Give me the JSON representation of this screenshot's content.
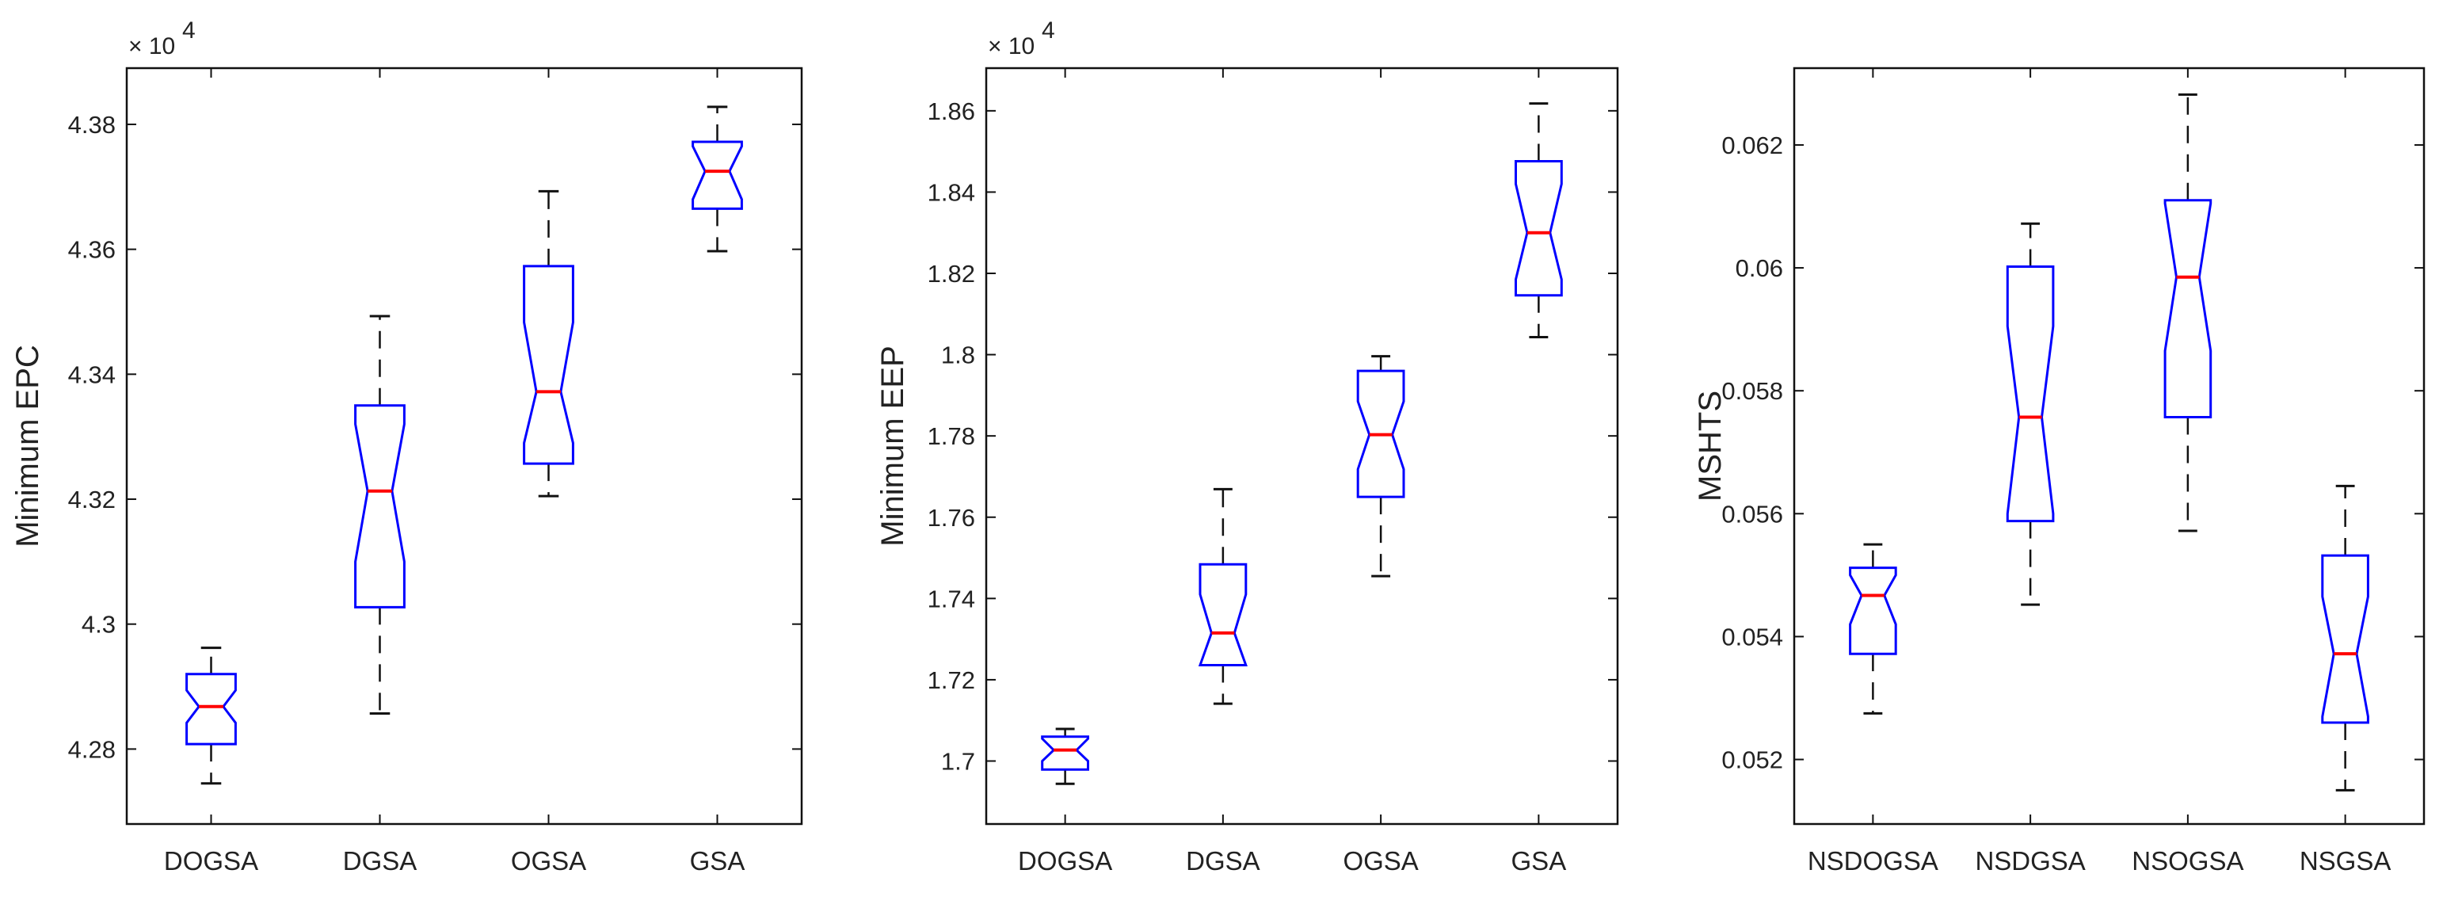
{
  "chart_data": [
    {
      "type": "boxplot",
      "notched": true,
      "ylabel": "Minimum EPC",
      "exponent_label": "× 10",
      "exponent_power": "4",
      "ylim": [
        4.268,
        4.389
      ],
      "yticks": [
        4.28,
        4.3,
        4.32,
        4.34,
        4.36,
        4.38
      ],
      "ytick_labels": [
        "4.28",
        "4.3",
        "4.32",
        "4.34",
        "4.36",
        "4.38"
      ],
      "categories": [
        "DOGSA",
        "DGSA",
        "OGSA",
        "GSA"
      ],
      "boxes": [
        {
          "min": 4.2745,
          "q1": 4.2808,
          "median": 4.2868,
          "q3": 4.292,
          "max": 4.2962,
          "notch_low": 4.2842,
          "notch_high": 4.2894
        },
        {
          "min": 4.2857,
          "q1": 4.3027,
          "median": 4.3213,
          "q3": 4.335,
          "max": 4.3493,
          "notch_low": 4.31,
          "notch_high": 4.332
        },
        {
          "min": 4.3205,
          "q1": 4.3257,
          "median": 4.3372,
          "q3": 4.3573,
          "max": 4.3693,
          "notch_low": 4.329,
          "notch_high": 4.3483
        },
        {
          "min": 4.3597,
          "q1": 4.3665,
          "median": 4.3725,
          "q3": 4.3772,
          "max": 4.3828,
          "notch_low": 4.368,
          "notch_high": 4.3765
        }
      ]
    },
    {
      "type": "boxplot",
      "notched": true,
      "ylabel": "Minimum EEP",
      "exponent_label": "× 10",
      "exponent_power": "4",
      "ylim": [
        1.6845,
        1.8705
      ],
      "yticks": [
        1.7,
        1.72,
        1.74,
        1.76,
        1.78,
        1.8,
        1.82,
        1.84,
        1.86
      ],
      "ytick_labels": [
        "1.7",
        "1.72",
        "1.74",
        "1.76",
        "1.78",
        "1.8",
        "1.82",
        "1.84",
        "1.86"
      ],
      "categories": [
        "DOGSA",
        "DGSA",
        "OGSA",
        "GSA"
      ],
      "boxes": [
        {
          "min": 1.6944,
          "q1": 1.6979,
          "median": 1.7027,
          "q3": 1.706,
          "max": 1.7079,
          "notch_low": 1.7,
          "notch_high": 1.7055
        },
        {
          "min": 1.7141,
          "q1": 1.7236,
          "median": 1.7315,
          "q3": 1.7484,
          "max": 1.7669,
          "notch_low": 1.7236,
          "notch_high": 1.741
        },
        {
          "min": 1.7455,
          "q1": 1.765,
          "median": 1.7803,
          "q3": 1.796,
          "max": 1.7996,
          "notch_low": 1.7718,
          "notch_high": 1.7885
        },
        {
          "min": 1.8043,
          "q1": 1.8146,
          "median": 1.83,
          "q3": 1.8476,
          "max": 1.8618,
          "notch_low": 1.8185,
          "notch_high": 1.842
        }
      ]
    },
    {
      "type": "boxplot",
      "notched": true,
      "ylabel": "MSHTS",
      "ylim": [
        0.05095,
        0.06325
      ],
      "yticks": [
        0.052,
        0.054,
        0.056,
        0.058,
        0.06,
        0.062
      ],
      "ytick_labels": [
        "0.052",
        "0.054",
        "0.056",
        "0.058",
        "0.06",
        "0.062"
      ],
      "categories": [
        "NSDOGSA",
        "NSDGSA",
        "NSOGSA",
        "NSGSA"
      ],
      "boxes": [
        {
          "min": 0.05275,
          "q1": 0.05372,
          "median": 0.05467,
          "q3": 0.05512,
          "max": 0.0555,
          "notch_low": 0.0542,
          "notch_high": 0.055
        },
        {
          "min": 0.05452,
          "q1": 0.05588,
          "median": 0.05757,
          "q3": 0.06002,
          "max": 0.06072,
          "notch_low": 0.056,
          "notch_high": 0.05905
        },
        {
          "min": 0.05572,
          "q1": 0.05757,
          "median": 0.05985,
          "q3": 0.0611,
          "max": 0.06282,
          "notch_low": 0.05865,
          "notch_high": 0.06105
        },
        {
          "min": 0.0515,
          "q1": 0.0526,
          "median": 0.05372,
          "q3": 0.05532,
          "max": 0.05645,
          "notch_low": 0.0527,
          "notch_high": 0.05465
        }
      ]
    }
  ]
}
